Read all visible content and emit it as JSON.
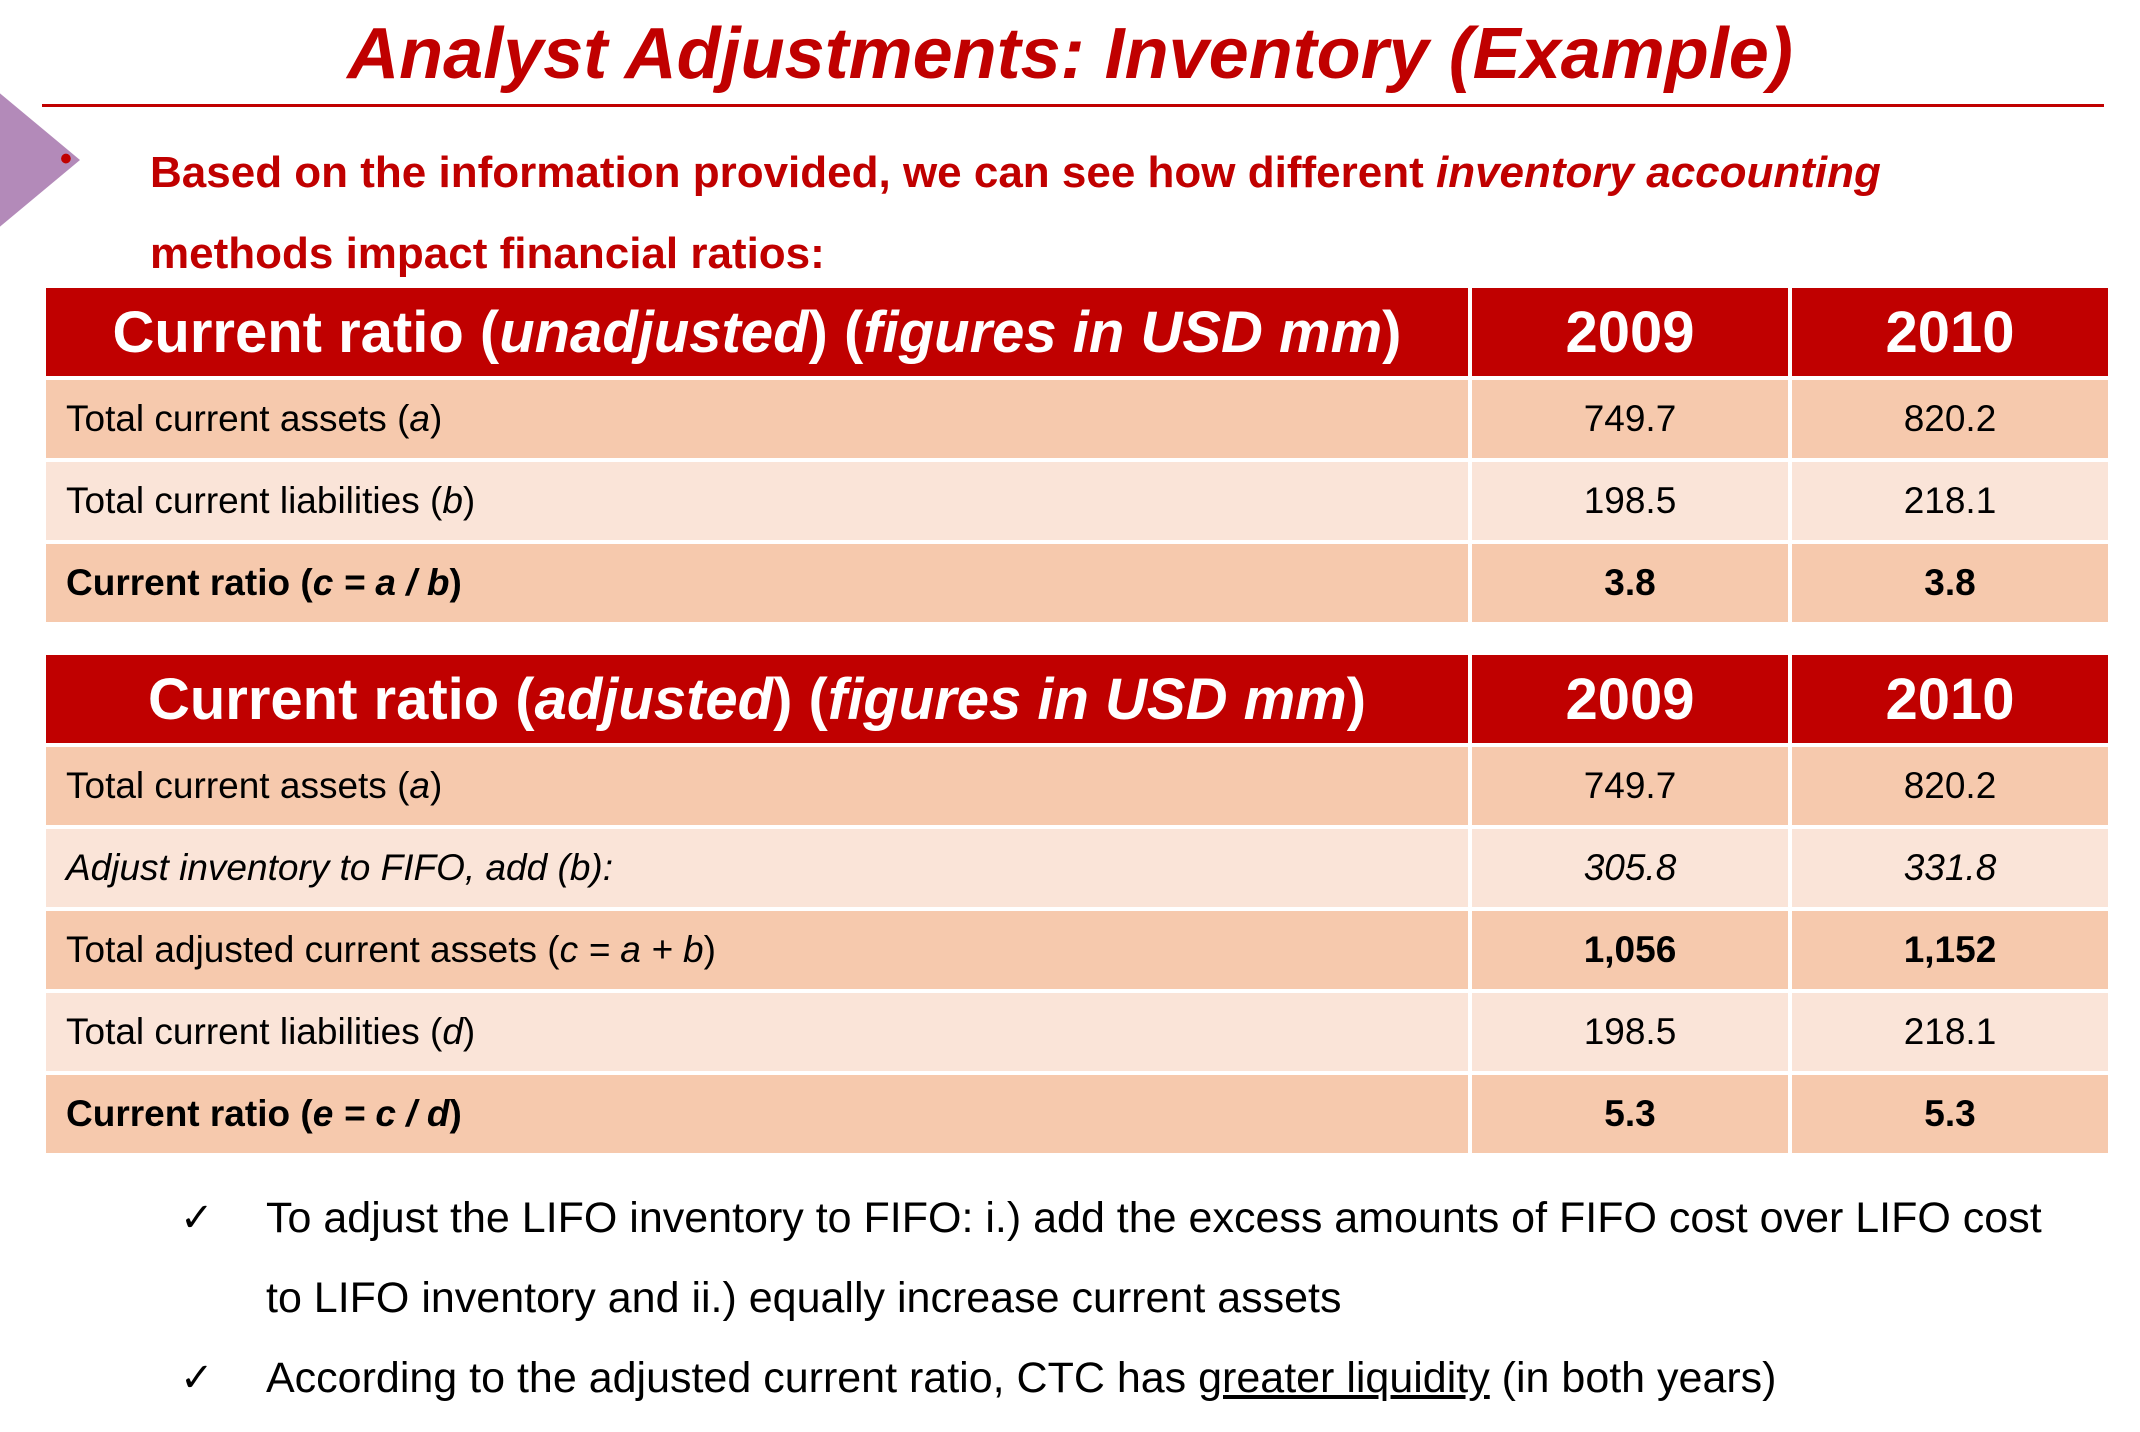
{
  "title": "Analyst Adjustments: Inventory (Example)",
  "intro": {
    "bullet": "•",
    "text_before": "Based on the information provided, we can see how different ",
    "text_italic": "inventory accounting",
    "text_after": " methods impact financial ratios:"
  },
  "table_unadjusted": {
    "header": {
      "prefix": "Current ratio (",
      "italic_word": "unadjusted",
      "middle": ") (",
      "italic_unit": "figures in USD mm",
      "suffix": ")",
      "col_2009": "2009",
      "col_2010": "2010"
    },
    "rows": [
      {
        "label": "Total current assets (",
        "var": "a",
        "close": ")",
        "v2009": "749.7",
        "v2010": "820.2"
      },
      {
        "label": "Total current liabilities (",
        "var": "b",
        "close": ")",
        "v2009": "198.5",
        "v2010": "218.1"
      },
      {
        "label": "Current ratio (",
        "var": "c = a / b",
        "close": ")",
        "v2009": "3.8",
        "v2010": "3.8"
      }
    ]
  },
  "table_adjusted": {
    "header": {
      "prefix": "Current ratio (",
      "italic_word": "adjusted",
      "middle": ") (",
      "italic_unit": "figures in USD mm",
      "suffix": ")",
      "col_2009": "2009",
      "col_2010": "2010"
    },
    "rows": [
      {
        "label": "Total current assets (",
        "var": "a",
        "close": ")",
        "v2009": "749.7",
        "v2010": "820.2"
      },
      {
        "label": "Adjust inventory to FIFO, add (b):",
        "v2009": "305.8",
        "v2010": "331.8"
      },
      {
        "label": "Total adjusted current assets (",
        "var": "c = a + b",
        "close": ")",
        "v2009": "1,056",
        "v2010": "1,152"
      },
      {
        "label": "Total current liabilities (",
        "var": "d",
        "close": ")",
        "v2009": "198.5",
        "v2010": "218.1"
      },
      {
        "label": "Current ratio (",
        "var": "e = c / d",
        "close": ")",
        "v2009": "5.3",
        "v2010": "5.3"
      }
    ]
  },
  "notes": {
    "check": "✓",
    "note1": "To adjust the LIFO inventory to FIFO: i.) add the excess amounts of FIFO cost over LIFO cost to LIFO inventory and ii.) equally increase current assets",
    "note2_before": "According to the adjusted current ratio, CTC has ",
    "note2_underline": "greater liquidity",
    "note2_after": " (in both years)"
  },
  "colors": {
    "accent_red": "#c00000",
    "row_dark": "#f6c9ad",
    "row_light": "#fae4d8",
    "arrow_purple": "#b38ab9"
  }
}
